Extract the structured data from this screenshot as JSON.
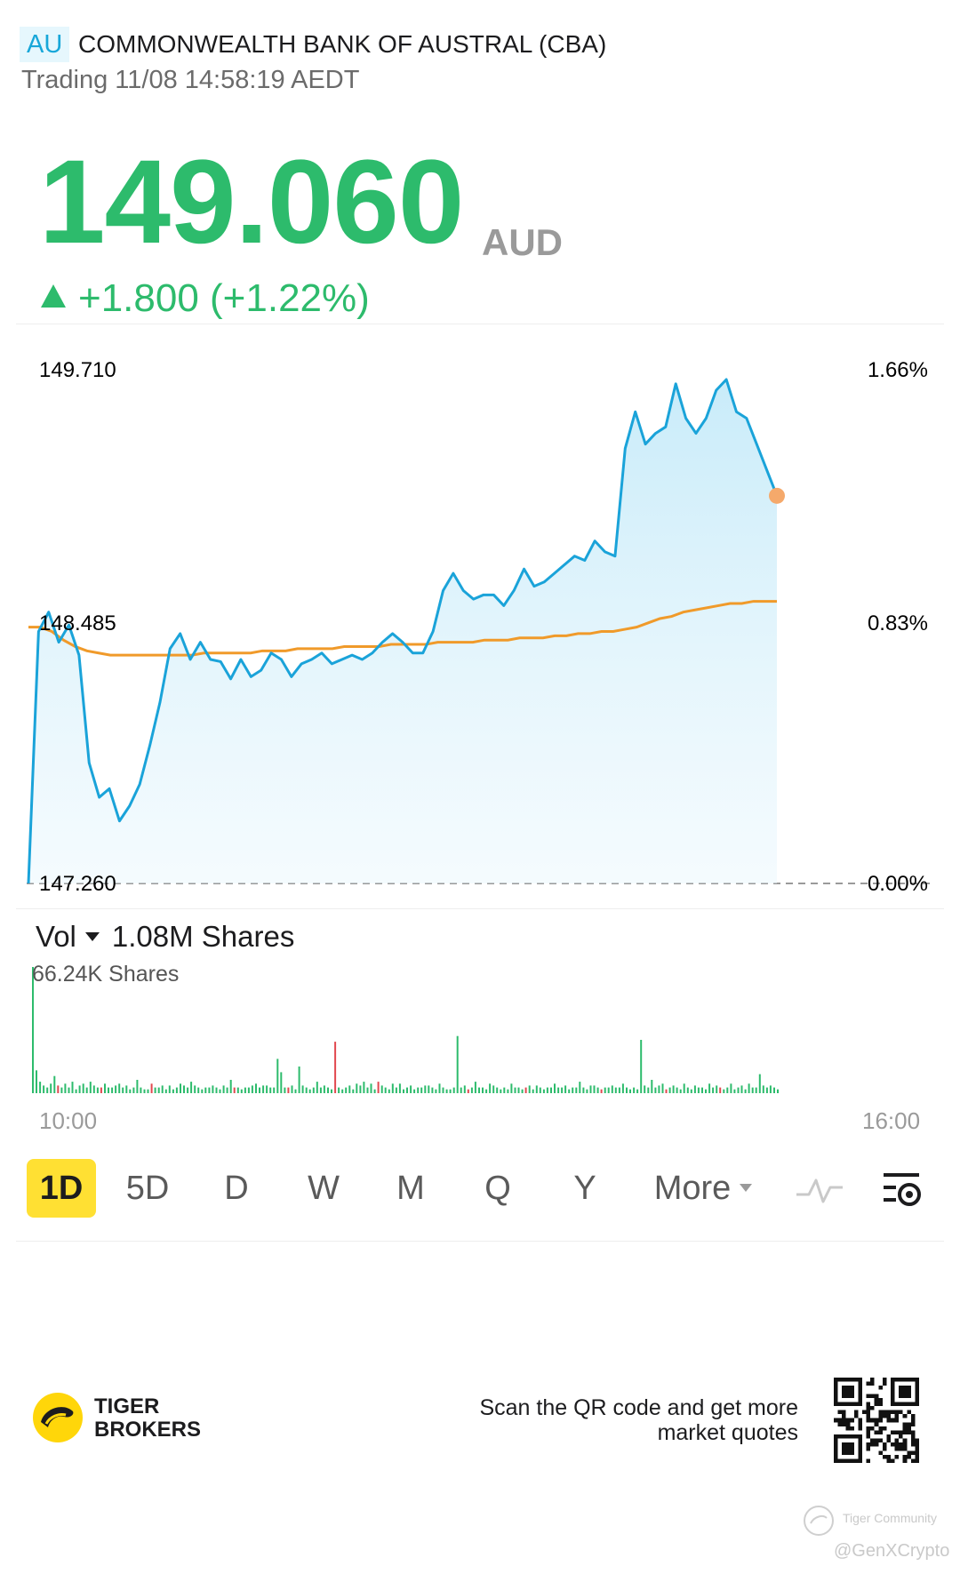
{
  "header": {
    "market": "AU",
    "name": "COMMONWEALTH BANK OF AUSTRAL (CBA)",
    "status": "Trading 11/08 14:58:19 AEDT"
  },
  "quote": {
    "price": "149.060",
    "currency": "AUD",
    "change": "+1.800 (+1.22%)",
    "up_color": "#2dbb6c"
  },
  "chart_data": [
    {
      "type": "line",
      "y_labels_left": [
        "149.710",
        "148.485",
        "147.260"
      ],
      "y_labels_right": [
        "1.66%",
        "0.83%",
        "0.00%"
      ],
      "ylim": [
        147.26,
        149.71
      ],
      "x_labels": [
        "10:00",
        "16:00"
      ],
      "series": [
        {
          "kind": "price",
          "color": "#1aa3d9",
          "values": [
            147.26,
            148.43,
            148.52,
            148.38,
            148.46,
            148.32,
            147.82,
            147.66,
            147.7,
            147.55,
            147.62,
            147.72,
            147.9,
            148.1,
            148.35,
            148.42,
            148.3,
            148.38,
            148.3,
            148.29,
            148.21,
            148.3,
            148.22,
            148.25,
            148.33,
            148.3,
            148.22,
            148.28,
            148.3,
            148.33,
            148.28,
            148.3,
            148.32,
            148.3,
            148.33,
            148.38,
            148.42,
            148.38,
            148.33,
            148.33,
            148.43,
            148.62,
            148.7,
            148.62,
            148.58,
            148.6,
            148.6,
            148.55,
            148.62,
            148.72,
            148.64,
            148.66,
            148.7,
            148.74,
            148.78,
            148.76,
            148.85,
            148.8,
            148.78,
            149.28,
            149.45,
            149.3,
            149.35,
            149.38,
            149.58,
            149.42,
            149.35,
            149.42,
            149.55,
            149.6,
            149.45,
            149.42,
            149.3,
            149.18,
            149.06
          ]
        },
        {
          "kind": "average",
          "color": "#f09a2a",
          "values": [
            148.45,
            148.45,
            148.43,
            148.39,
            148.36,
            148.34,
            148.33,
            148.32,
            148.32,
            148.32,
            148.32,
            148.32,
            148.32,
            148.32,
            148.32,
            148.33,
            148.33,
            148.33,
            148.33,
            148.33,
            148.34,
            148.34,
            148.34,
            148.35,
            148.35,
            148.35,
            148.35,
            148.36,
            148.36,
            148.36,
            148.36,
            148.37,
            148.37,
            148.37,
            148.37,
            148.38,
            148.38,
            148.38,
            148.38,
            148.39,
            148.39,
            148.39,
            148.4,
            148.4,
            148.4,
            148.41,
            148.41,
            148.42,
            148.42,
            148.43,
            148.43,
            148.44,
            148.45,
            148.47,
            148.49,
            148.5,
            148.52,
            148.53,
            148.54,
            148.55,
            148.56,
            148.56,
            148.57,
            148.57,
            148.57
          ]
        }
      ],
      "last_point_color": "#f5a96b"
    },
    {
      "type": "bar",
      "title": "Vol",
      "total": "1.08M Shares",
      "max_label": "66.24K Shares",
      "x_labels": [
        "10:00",
        "16:00"
      ],
      "max_value": 66.24,
      "up_color": "#2dbb6c",
      "down_color": "#e2484f",
      "values": [
        66.24,
        12,
        6,
        4,
        3,
        5,
        9,
        4,
        3,
        5,
        3,
        6,
        2,
        4,
        5,
        3,
        6,
        4,
        3,
        3,
        5,
        3,
        3,
        4,
        5,
        3,
        4,
        2,
        3,
        7,
        3,
        2,
        2,
        5,
        3,
        3,
        4,
        2,
        4,
        2,
        3,
        5,
        4,
        3,
        6,
        4,
        3,
        2,
        3,
        3,
        4,
        3,
        2,
        4,
        3,
        7,
        3,
        3,
        2,
        3,
        3,
        4,
        5,
        3,
        4,
        4,
        3,
        3,
        18,
        11,
        3,
        3,
        4,
        2,
        14,
        4,
        3,
        2,
        3,
        6,
        3,
        4,
        3,
        2,
        27,
        3,
        2,
        3,
        4,
        2,
        5,
        4,
        6,
        3,
        5,
        2,
        6,
        4,
        3,
        2,
        5,
        3,
        5,
        2,
        3,
        4,
        2,
        3,
        3,
        4,
        4,
        3,
        2,
        5,
        3,
        2,
        2,
        3,
        30,
        3,
        4,
        2,
        3,
        6,
        3,
        3,
        2,
        5,
        4,
        3,
        2,
        3,
        2,
        5,
        3,
        3,
        2,
        3,
        4,
        2,
        4,
        3,
        2,
        3,
        3,
        5,
        3,
        3,
        4,
        2,
        3,
        3,
        6,
        3,
        2,
        4,
        4,
        3,
        2,
        3,
        3,
        4,
        3,
        3,
        5,
        3,
        2,
        3,
        2,
        28,
        4,
        3,
        7,
        3,
        4,
        5,
        2,
        3,
        4,
        3,
        2,
        5,
        3,
        2,
        4,
        3,
        3,
        2,
        5,
        3,
        4,
        3,
        2,
        3,
        5,
        2,
        3,
        4,
        2,
        5,
        3,
        3,
        10,
        4,
        3,
        4,
        3,
        2
      ],
      "down_indices": [
        7,
        19,
        33,
        56,
        71,
        84,
        96,
        121,
        137,
        158,
        176,
        191
      ]
    }
  ],
  "tabs": {
    "items": [
      "1D",
      "5D",
      "D",
      "W",
      "M",
      "Q",
      "Y"
    ],
    "more": "More",
    "active": "1D"
  },
  "footer": {
    "brand_line1": "TIGER",
    "brand_line2": "BROKERS",
    "qr_text": "Scan the QR code and get more market quotes",
    "watermark_1": "Tiger Community",
    "watermark_2": "@GenXCrypto"
  },
  "icons": {
    "indicator": "line-indicator-icon",
    "settings": "chart-settings-icon",
    "logo": "tiger-logo-icon"
  }
}
